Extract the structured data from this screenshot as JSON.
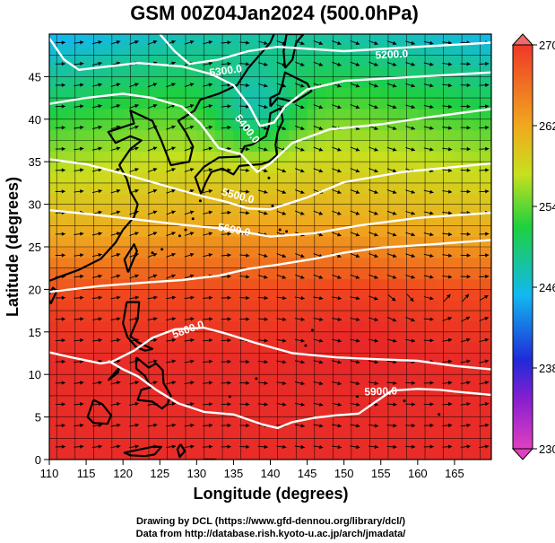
{
  "chart_data": {
    "type": "heatmap",
    "title": "GSM 00Z04Jan2024 (500.0hPa)",
    "xlabel": "Longitude (degrees)",
    "ylabel": "Latitude  (degrees)",
    "xlim": [
      110,
      170
    ],
    "ylim": [
      0,
      50
    ],
    "x_ticks": [
      "110",
      "115",
      "120",
      "125",
      "130",
      "135",
      "140",
      "145",
      "150",
      "155",
      "160",
      "165"
    ],
    "y_ticks": [
      "0",
      "5",
      "10",
      "15",
      "20",
      "25",
      "30",
      "35",
      "40",
      "45"
    ],
    "colorbar": {
      "min": 230,
      "max": 270,
      "ticks": [
        "230",
        "238",
        "246",
        "254",
        "262",
        "270"
      ]
    },
    "contour_labels": [
      "5200.0",
      "5300.0",
      "5400.0",
      "5500.0",
      "5600.0",
      "5800.0",
      "5900.0"
    ],
    "credits": [
      "Drawing by DCL (https://www.gfd-dennou.org/library/dcl/)",
      "Data from http://database.rish.kyoto-u.ac.jp/arch/jmadata/"
    ]
  }
}
